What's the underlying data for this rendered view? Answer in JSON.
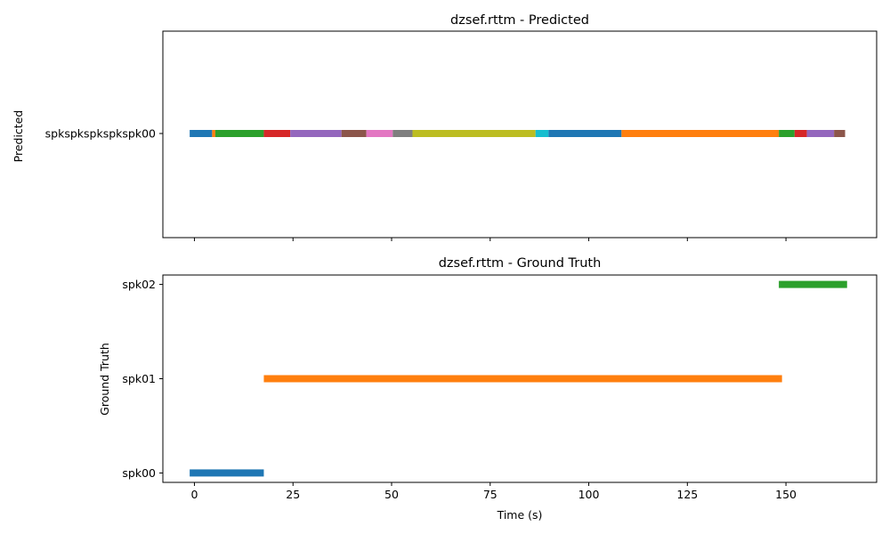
{
  "chart_data": [
    {
      "type": "timeline",
      "title": "dzsef.rttm - Predicted",
      "ylabel": "Predicted",
      "xlabel": "",
      "xlim": [
        -8,
        173
      ],
      "x_ticks": [
        0,
        25,
        50,
        75,
        100,
        125,
        150
      ],
      "x_tick_labels_visible": false,
      "grid": false,
      "rows": [
        "spkspkspkspkspk00"
      ],
      "segments": [
        {
          "row": 0,
          "start": -1.2,
          "end": 4.5,
          "color": "#1f77b4"
        },
        {
          "row": 0,
          "start": 4.5,
          "end": 5.3,
          "color": "#ff7f0e"
        },
        {
          "row": 0,
          "start": 5.3,
          "end": 17.6,
          "color": "#2ca02c"
        },
        {
          "row": 0,
          "start": 17.6,
          "end": 24.3,
          "color": "#d62728"
        },
        {
          "row": 0,
          "start": 24.3,
          "end": 37.3,
          "color": "#9467bd"
        },
        {
          "row": 0,
          "start": 37.3,
          "end": 43.6,
          "color": "#8c564b"
        },
        {
          "row": 0,
          "start": 43.6,
          "end": 50.3,
          "color": "#e377c2"
        },
        {
          "row": 0,
          "start": 50.3,
          "end": 55.3,
          "color": "#7f7f7f"
        },
        {
          "row": 0,
          "start": 55.3,
          "end": 86.5,
          "color": "#bcbd22"
        },
        {
          "row": 0,
          "start": 86.5,
          "end": 89.8,
          "color": "#17becf"
        },
        {
          "row": 0,
          "start": 89.8,
          "end": 108.3,
          "color": "#1f77b4"
        },
        {
          "row": 0,
          "start": 108.3,
          "end": 148.2,
          "color": "#ff7f0e"
        },
        {
          "row": 0,
          "start": 148.2,
          "end": 152.2,
          "color": "#2ca02c"
        },
        {
          "row": 0,
          "start": 152.2,
          "end": 155.3,
          "color": "#d62728"
        },
        {
          "row": 0,
          "start": 155.3,
          "end": 162.2,
          "color": "#9467bd"
        },
        {
          "row": 0,
          "start": 162.2,
          "end": 165.0,
          "color": "#8c564b"
        }
      ]
    },
    {
      "type": "timeline",
      "title": "dzsef.rttm - Ground Truth",
      "ylabel": "Ground Truth",
      "xlabel": "Time (s)",
      "xlim": [
        -8,
        173
      ],
      "x_ticks": [
        0,
        25,
        50,
        75,
        100,
        125,
        150
      ],
      "x_tick_labels_visible": true,
      "grid": false,
      "rows": [
        "spk00",
        "spk01",
        "spk02"
      ],
      "segments": [
        {
          "row": 0,
          "start": -1.2,
          "end": 17.6,
          "color": "#1f77b4"
        },
        {
          "row": 1,
          "start": 17.6,
          "end": 149.0,
          "color": "#ff7f0e"
        },
        {
          "row": 2,
          "start": 148.2,
          "end": 165.5,
          "color": "#2ca02c"
        }
      ]
    }
  ]
}
